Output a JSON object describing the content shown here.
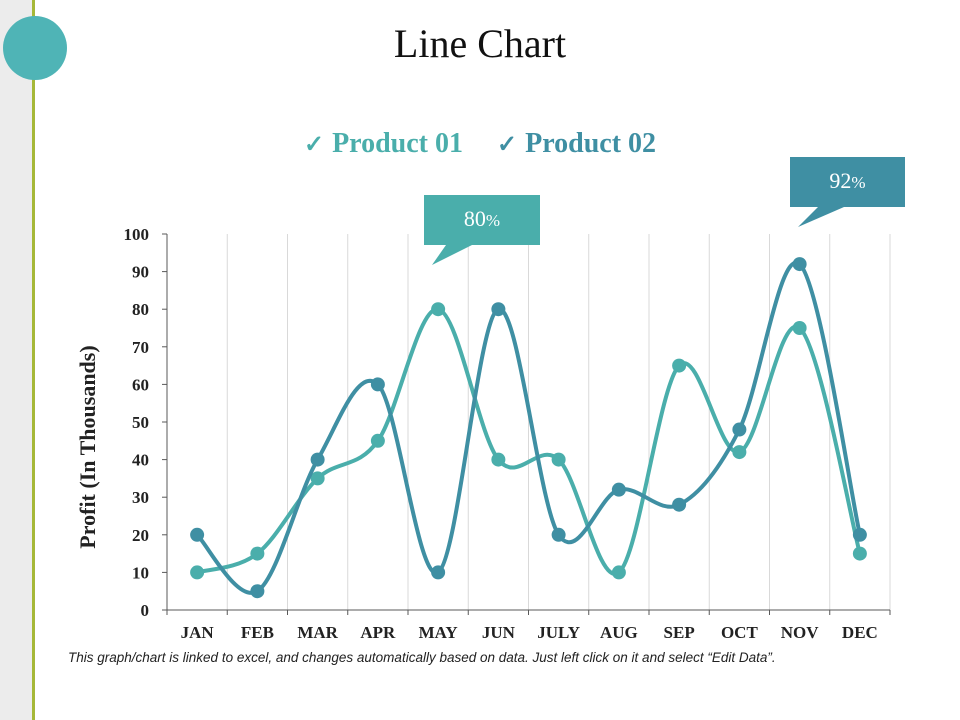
{
  "slide": {
    "title": "Line Chart",
    "footnote": "This graph/chart is linked to excel, and changes automatically based on data. Just left click on it and select “Edit Data”."
  },
  "colors": {
    "product01": "#4aaeab",
    "product02": "#3f8fa3",
    "callout1": "#4aaeab",
    "callout2": "#3f8fa3",
    "grid": "#d9d9d9",
    "axis": "#595959",
    "accent_line": "#a6b838",
    "circle": "#4fb4b6"
  },
  "legend": [
    {
      "check": "✓",
      "label": "Product 01",
      "color": "#4aaeab"
    },
    {
      "check": "✓",
      "label": "Product 02",
      "color": "#3f8fa3"
    }
  ],
  "callouts": [
    {
      "number": "80",
      "unit": "%",
      "month": "MAY",
      "value": 80
    },
    {
      "number": "92",
      "unit": "%",
      "month": "NOV",
      "value": 92
    }
  ],
  "chart_data": {
    "type": "line",
    "title": "Line Chart",
    "ylabel": "Profit (In Thousands)",
    "xlabel": "",
    "categories": [
      "JAN",
      "FEB",
      "MAR",
      "APR",
      "MAY",
      "JUN",
      "JULY",
      "AUG",
      "SEP",
      "OCT",
      "NOV",
      "DEC"
    ],
    "ylim": [
      0,
      100
    ],
    "yticks": [
      0,
      10,
      20,
      30,
      40,
      50,
      60,
      70,
      80,
      90,
      100
    ],
    "grid": "vertical",
    "legend_position": "top",
    "series": [
      {
        "name": "Product 01",
        "values": [
          10,
          15,
          35,
          45,
          80,
          40,
          40,
          10,
          65,
          42,
          75,
          15
        ]
      },
      {
        "name": "Product 02",
        "values": [
          20,
          5,
          40,
          60,
          10,
          80,
          20,
          32,
          28,
          48,
          92,
          20
        ]
      }
    ]
  }
}
